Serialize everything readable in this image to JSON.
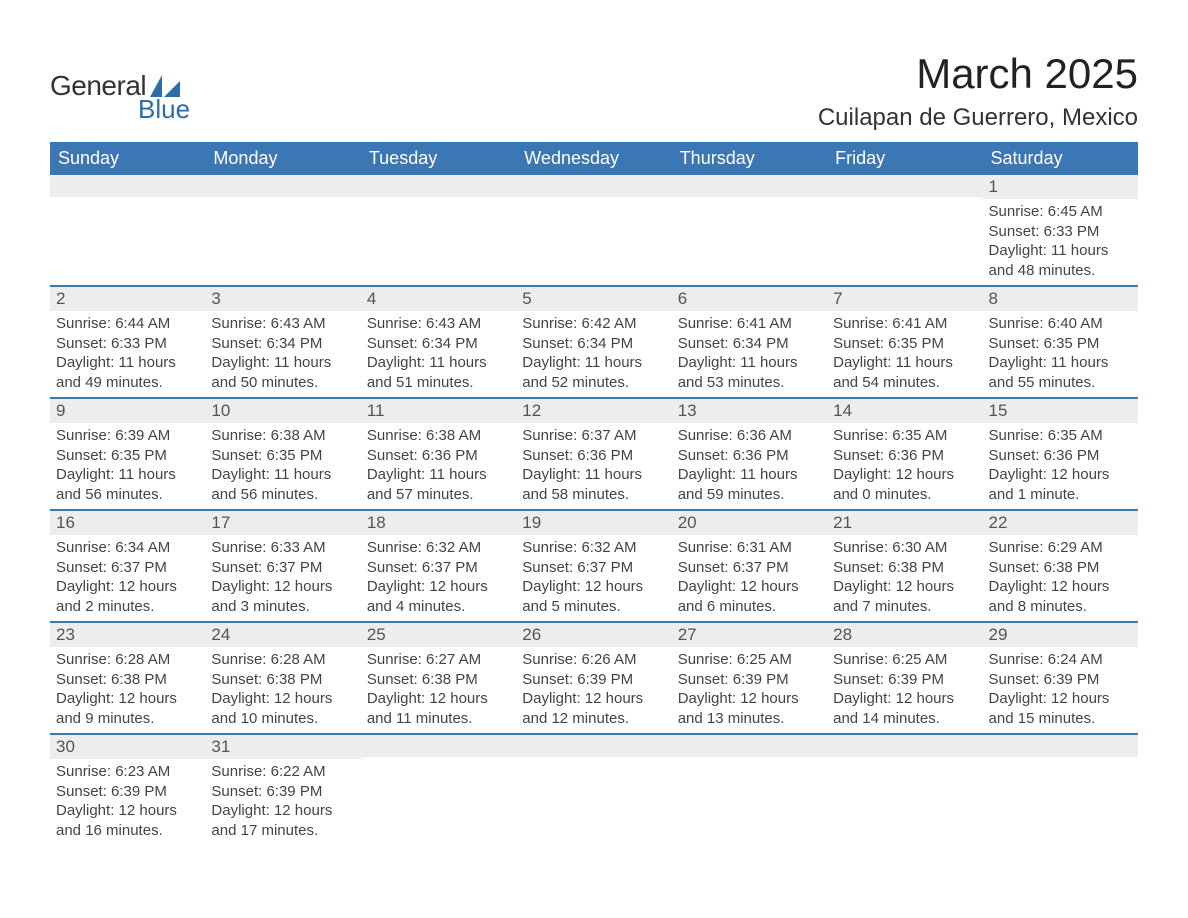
{
  "logo": {
    "text_general": "General",
    "text_blue": "Blue",
    "shape_color": "#2c6ca8"
  },
  "title": "March 2025",
  "location": "Cuilapan de Guerrero, Mexico",
  "colors": {
    "header_bg": "#3b76b5",
    "header_text": "#ffffff",
    "daynum_bg": "#eceded",
    "border": "#3b76b5",
    "body_text": "#444444",
    "title_text": "#222222"
  },
  "fonts": {
    "title_size_pt": 42,
    "location_size_pt": 24,
    "day_header_size_pt": 18,
    "daynum_size_pt": 17,
    "body_size_pt": 15
  },
  "day_headers": [
    "Sunday",
    "Monday",
    "Tuesday",
    "Wednesday",
    "Thursday",
    "Friday",
    "Saturday"
  ],
  "weeks": [
    [
      {
        "empty": true
      },
      {
        "empty": true
      },
      {
        "empty": true
      },
      {
        "empty": true
      },
      {
        "empty": true
      },
      {
        "empty": true
      },
      {
        "day": "1",
        "sunrise": "Sunrise: 6:45 AM",
        "sunset": "Sunset: 6:33 PM",
        "daylight1": "Daylight: 11 hours",
        "daylight2": "and 48 minutes."
      }
    ],
    [
      {
        "day": "2",
        "sunrise": "Sunrise: 6:44 AM",
        "sunset": "Sunset: 6:33 PM",
        "daylight1": "Daylight: 11 hours",
        "daylight2": "and 49 minutes."
      },
      {
        "day": "3",
        "sunrise": "Sunrise: 6:43 AM",
        "sunset": "Sunset: 6:34 PM",
        "daylight1": "Daylight: 11 hours",
        "daylight2": "and 50 minutes."
      },
      {
        "day": "4",
        "sunrise": "Sunrise: 6:43 AM",
        "sunset": "Sunset: 6:34 PM",
        "daylight1": "Daylight: 11 hours",
        "daylight2": "and 51 minutes."
      },
      {
        "day": "5",
        "sunrise": "Sunrise: 6:42 AM",
        "sunset": "Sunset: 6:34 PM",
        "daylight1": "Daylight: 11 hours",
        "daylight2": "and 52 minutes."
      },
      {
        "day": "6",
        "sunrise": "Sunrise: 6:41 AM",
        "sunset": "Sunset: 6:34 PM",
        "daylight1": "Daylight: 11 hours",
        "daylight2": "and 53 minutes."
      },
      {
        "day": "7",
        "sunrise": "Sunrise: 6:41 AM",
        "sunset": "Sunset: 6:35 PM",
        "daylight1": "Daylight: 11 hours",
        "daylight2": "and 54 minutes."
      },
      {
        "day": "8",
        "sunrise": "Sunrise: 6:40 AM",
        "sunset": "Sunset: 6:35 PM",
        "daylight1": "Daylight: 11 hours",
        "daylight2": "and 55 minutes."
      }
    ],
    [
      {
        "day": "9",
        "sunrise": "Sunrise: 6:39 AM",
        "sunset": "Sunset: 6:35 PM",
        "daylight1": "Daylight: 11 hours",
        "daylight2": "and 56 minutes."
      },
      {
        "day": "10",
        "sunrise": "Sunrise: 6:38 AM",
        "sunset": "Sunset: 6:35 PM",
        "daylight1": "Daylight: 11 hours",
        "daylight2": "and 56 minutes."
      },
      {
        "day": "11",
        "sunrise": "Sunrise: 6:38 AM",
        "sunset": "Sunset: 6:36 PM",
        "daylight1": "Daylight: 11 hours",
        "daylight2": "and 57 minutes."
      },
      {
        "day": "12",
        "sunrise": "Sunrise: 6:37 AM",
        "sunset": "Sunset: 6:36 PM",
        "daylight1": "Daylight: 11 hours",
        "daylight2": "and 58 minutes."
      },
      {
        "day": "13",
        "sunrise": "Sunrise: 6:36 AM",
        "sunset": "Sunset: 6:36 PM",
        "daylight1": "Daylight: 11 hours",
        "daylight2": "and 59 minutes."
      },
      {
        "day": "14",
        "sunrise": "Sunrise: 6:35 AM",
        "sunset": "Sunset: 6:36 PM",
        "daylight1": "Daylight: 12 hours",
        "daylight2": "and 0 minutes."
      },
      {
        "day": "15",
        "sunrise": "Sunrise: 6:35 AM",
        "sunset": "Sunset: 6:36 PM",
        "daylight1": "Daylight: 12 hours",
        "daylight2": "and 1 minute."
      }
    ],
    [
      {
        "day": "16",
        "sunrise": "Sunrise: 6:34 AM",
        "sunset": "Sunset: 6:37 PM",
        "daylight1": "Daylight: 12 hours",
        "daylight2": "and 2 minutes."
      },
      {
        "day": "17",
        "sunrise": "Sunrise: 6:33 AM",
        "sunset": "Sunset: 6:37 PM",
        "daylight1": "Daylight: 12 hours",
        "daylight2": "and 3 minutes."
      },
      {
        "day": "18",
        "sunrise": "Sunrise: 6:32 AM",
        "sunset": "Sunset: 6:37 PM",
        "daylight1": "Daylight: 12 hours",
        "daylight2": "and 4 minutes."
      },
      {
        "day": "19",
        "sunrise": "Sunrise: 6:32 AM",
        "sunset": "Sunset: 6:37 PM",
        "daylight1": "Daylight: 12 hours",
        "daylight2": "and 5 minutes."
      },
      {
        "day": "20",
        "sunrise": "Sunrise: 6:31 AM",
        "sunset": "Sunset: 6:37 PM",
        "daylight1": "Daylight: 12 hours",
        "daylight2": "and 6 minutes."
      },
      {
        "day": "21",
        "sunrise": "Sunrise: 6:30 AM",
        "sunset": "Sunset: 6:38 PM",
        "daylight1": "Daylight: 12 hours",
        "daylight2": "and 7 minutes."
      },
      {
        "day": "22",
        "sunrise": "Sunrise: 6:29 AM",
        "sunset": "Sunset: 6:38 PM",
        "daylight1": "Daylight: 12 hours",
        "daylight2": "and 8 minutes."
      }
    ],
    [
      {
        "day": "23",
        "sunrise": "Sunrise: 6:28 AM",
        "sunset": "Sunset: 6:38 PM",
        "daylight1": "Daylight: 12 hours",
        "daylight2": "and 9 minutes."
      },
      {
        "day": "24",
        "sunrise": "Sunrise: 6:28 AM",
        "sunset": "Sunset: 6:38 PM",
        "daylight1": "Daylight: 12 hours",
        "daylight2": "and 10 minutes."
      },
      {
        "day": "25",
        "sunrise": "Sunrise: 6:27 AM",
        "sunset": "Sunset: 6:38 PM",
        "daylight1": "Daylight: 12 hours",
        "daylight2": "and 11 minutes."
      },
      {
        "day": "26",
        "sunrise": "Sunrise: 6:26 AM",
        "sunset": "Sunset: 6:39 PM",
        "daylight1": "Daylight: 12 hours",
        "daylight2": "and 12 minutes."
      },
      {
        "day": "27",
        "sunrise": "Sunrise: 6:25 AM",
        "sunset": "Sunset: 6:39 PM",
        "daylight1": "Daylight: 12 hours",
        "daylight2": "and 13 minutes."
      },
      {
        "day": "28",
        "sunrise": "Sunrise: 6:25 AM",
        "sunset": "Sunset: 6:39 PM",
        "daylight1": "Daylight: 12 hours",
        "daylight2": "and 14 minutes."
      },
      {
        "day": "29",
        "sunrise": "Sunrise: 6:24 AM",
        "sunset": "Sunset: 6:39 PM",
        "daylight1": "Daylight: 12 hours",
        "daylight2": "and 15 minutes."
      }
    ],
    [
      {
        "day": "30",
        "sunrise": "Sunrise: 6:23 AM",
        "sunset": "Sunset: 6:39 PM",
        "daylight1": "Daylight: 12 hours",
        "daylight2": "and 16 minutes."
      },
      {
        "day": "31",
        "sunrise": "Sunrise: 6:22 AM",
        "sunset": "Sunset: 6:39 PM",
        "daylight1": "Daylight: 12 hours",
        "daylight2": "and 17 minutes."
      },
      {
        "empty": true
      },
      {
        "empty": true
      },
      {
        "empty": true
      },
      {
        "empty": true
      },
      {
        "empty": true
      }
    ]
  ]
}
